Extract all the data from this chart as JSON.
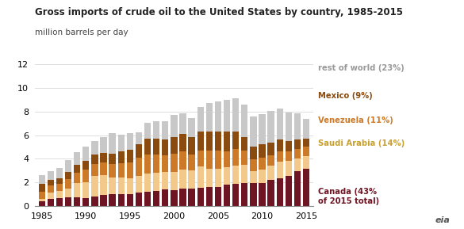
{
  "years": [
    1985,
    1986,
    1987,
    1988,
    1989,
    1990,
    1991,
    1992,
    1993,
    1994,
    1995,
    1996,
    1997,
    1998,
    1999,
    2000,
    2001,
    2002,
    2003,
    2004,
    2005,
    2006,
    2007,
    2008,
    2009,
    2010,
    2011,
    2012,
    2013,
    2014,
    2015
  ],
  "canada": [
    0.41,
    0.58,
    0.65,
    0.71,
    0.72,
    0.69,
    0.8,
    0.93,
    1.0,
    1.04,
    1.04,
    1.14,
    1.21,
    1.28,
    1.38,
    1.35,
    1.46,
    1.45,
    1.55,
    1.62,
    1.63,
    1.8,
    1.89,
    1.95,
    1.94,
    1.97,
    2.19,
    2.37,
    2.52,
    2.96,
    3.17
  ],
  "saudi_arabia": [
    0.17,
    0.59,
    0.64,
    0.76,
    1.22,
    1.34,
    1.77,
    1.67,
    1.39,
    1.37,
    1.28,
    1.39,
    1.57,
    1.52,
    1.52,
    1.55,
    1.66,
    1.55,
    1.79,
    1.54,
    1.53,
    1.48,
    1.55,
    1.53,
    1.03,
    1.1,
    1.2,
    1.37,
    1.32,
    1.06,
    1.05
  ],
  "venezuela": [
    0.62,
    0.56,
    0.62,
    0.83,
    0.91,
    1.05,
    1.01,
    1.06,
    1.14,
    1.22,
    1.38,
    1.54,
    1.57,
    1.53,
    1.4,
    1.55,
    1.53,
    1.36,
    1.38,
    1.53,
    1.53,
    1.38,
    1.36,
    1.19,
    0.99,
    0.99,
    0.9,
    0.91,
    0.79,
    0.79,
    0.79
  ],
  "mexico": [
    0.68,
    0.52,
    0.47,
    0.57,
    0.61,
    0.74,
    0.8,
    0.84,
    0.89,
    0.97,
    1.05,
    1.13,
    1.32,
    1.38,
    1.33,
    1.35,
    1.46,
    1.45,
    1.58,
    1.64,
    1.6,
    1.67,
    1.53,
    1.19,
    1.07,
    1.15,
    1.1,
    1.01,
    0.85,
    0.79,
    0.68
  ],
  "rest_of_world": [
    0.74,
    0.71,
    0.83,
    1.02,
    1.13,
    1.23,
    1.1,
    1.35,
    1.73,
    1.45,
    1.42,
    1.03,
    1.39,
    1.45,
    1.55,
    1.93,
    1.75,
    1.62,
    2.06,
    2.39,
    2.58,
    2.63,
    2.79,
    2.7,
    2.55,
    2.56,
    2.67,
    2.56,
    2.4,
    2.26,
    1.68
  ],
  "bar_colors": {
    "canada": "#6e1423",
    "saudi_arabia": "#f2c98a",
    "venezuela": "#cc7a28",
    "mexico": "#8b4a0e",
    "rest_of_world": "#c8c8c8"
  },
  "title": "Gross imports of crude oil to the United States by country, 1985-2015",
  "subtitle": "million barrels per day",
  "ylim": [
    0,
    12
  ],
  "yticks": [
    0,
    2,
    4,
    6,
    8,
    10,
    12
  ],
  "xticks": [
    1985,
    1990,
    1995,
    2000,
    2005,
    2010,
    2015
  ],
  "legend_entries": [
    {
      "label": "rest of world (23%)",
      "key": "rest_of_world",
      "text_color": "#999999"
    },
    {
      "label": "Mexico (9%)",
      "key": "mexico",
      "text_color": "#8b4a0e"
    },
    {
      "label": "Venezuela (11%)",
      "key": "venezuela",
      "text_color": "#cc7a28"
    },
    {
      "label": "Saudi Arabia (14%)",
      "key": "saudi_arabia",
      "text_color": "#c8a030"
    },
    {
      "label": "Canada (43%\nof 2015 total)",
      "key": "canada",
      "text_color": "#6e1423"
    }
  ],
  "background_color": "#ffffff",
  "grid_color": "#d0d0d0",
  "title_fontsize": 8.5,
  "subtitle_fontsize": 7.5,
  "tick_fontsize": 8,
  "legend_fontsize": 7.2
}
